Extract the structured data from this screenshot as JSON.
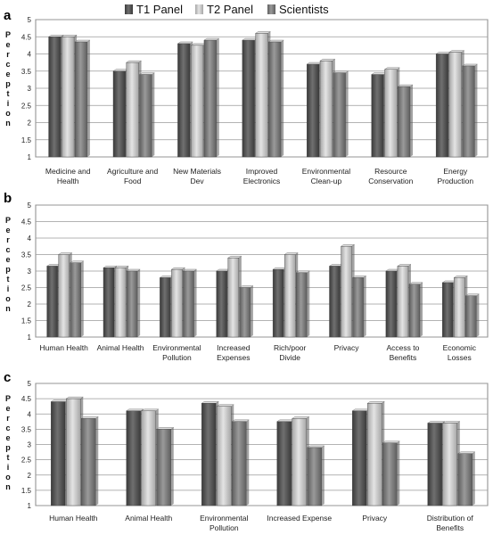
{
  "legend": {
    "items": [
      {
        "name": "T1 Panel",
        "color": "#555555"
      },
      {
        "name": "T2 Panel",
        "color": "#c4c4c4"
      },
      {
        "name": "Scientists",
        "color": "#7e7e7e"
      }
    ]
  },
  "chart_data": [
    {
      "panel_label": "a",
      "type": "bar",
      "ylabel": "Perception",
      "ylim": [
        1,
        5
      ],
      "yticks": [
        "1",
        "1.5",
        "2",
        "2.5",
        "3",
        "3.5",
        "4",
        "4.5",
        "5"
      ],
      "grid": true,
      "legend_position": "top-center",
      "categories": [
        [
          "Medicine and",
          "Health"
        ],
        [
          "Agriculture and",
          "Food"
        ],
        [
          "New Materials",
          "Dev"
        ],
        [
          "Improved",
          "Electronics"
        ],
        [
          "Environmental",
          "Clean-up"
        ],
        [
          "Resource",
          "Conservation"
        ],
        [
          "Energy",
          "Production"
        ]
      ],
      "series": [
        {
          "name": "T1 Panel",
          "values": [
            4.5,
            3.5,
            4.3,
            4.4,
            3.7,
            3.4,
            4.0
          ]
        },
        {
          "name": "T2 Panel",
          "values": [
            4.5,
            3.75,
            4.25,
            4.6,
            3.8,
            3.55,
            4.05
          ]
        },
        {
          "name": "Scientists",
          "values": [
            4.35,
            3.4,
            4.4,
            4.35,
            3.45,
            3.05,
            3.65
          ]
        }
      ]
    },
    {
      "panel_label": "b",
      "type": "bar",
      "ylabel": "Perception",
      "ylim": [
        1,
        5
      ],
      "yticks": [
        "1",
        "1.5",
        "2",
        "2.5",
        "3",
        "3.5",
        "4",
        "4.5",
        "5"
      ],
      "grid": true,
      "categories": [
        [
          "Human Health"
        ],
        [
          "Animal Health"
        ],
        [
          "Environmental",
          "Pollution"
        ],
        [
          "Increased",
          "Expenses"
        ],
        [
          "Rich/poor",
          "Divide"
        ],
        [
          "Privacy"
        ],
        [
          "Access to",
          "Benefits"
        ],
        [
          "Economic",
          "Losses"
        ]
      ],
      "series": [
        {
          "name": "T1 Panel",
          "values": [
            3.15,
            3.1,
            2.8,
            3.0,
            3.05,
            3.15,
            3.0,
            2.65
          ]
        },
        {
          "name": "T2 Panel",
          "values": [
            3.5,
            3.1,
            3.05,
            3.4,
            3.5,
            3.75,
            3.15,
            2.8
          ]
        },
        {
          "name": "Scientists",
          "values": [
            3.25,
            3.0,
            3.0,
            2.5,
            2.95,
            2.8,
            2.6,
            2.25
          ]
        }
      ]
    },
    {
      "panel_label": "c",
      "type": "bar",
      "ylabel": "Perception",
      "ylim": [
        1,
        5
      ],
      "yticks": [
        "1",
        "1.5",
        "2",
        "2.5",
        "3",
        "3.5",
        "4",
        "4.5",
        "5"
      ],
      "grid": true,
      "categories": [
        [
          "Human Health"
        ],
        [
          "Animal Health"
        ],
        [
          "Environmental",
          "Pollution"
        ],
        [
          "Increased Expense"
        ],
        [
          "Privacy"
        ],
        [
          "Distribution of",
          "Benefits"
        ]
      ],
      "series": [
        {
          "name": "T1 Panel",
          "values": [
            4.4,
            4.1,
            4.35,
            3.75,
            4.1,
            3.7
          ]
        },
        {
          "name": "T2 Panel",
          "values": [
            4.5,
            4.1,
            4.25,
            3.85,
            4.35,
            3.7
          ]
        },
        {
          "name": "Scientists",
          "values": [
            3.85,
            3.5,
            3.75,
            2.9,
            3.05,
            2.7
          ]
        }
      ]
    }
  ]
}
